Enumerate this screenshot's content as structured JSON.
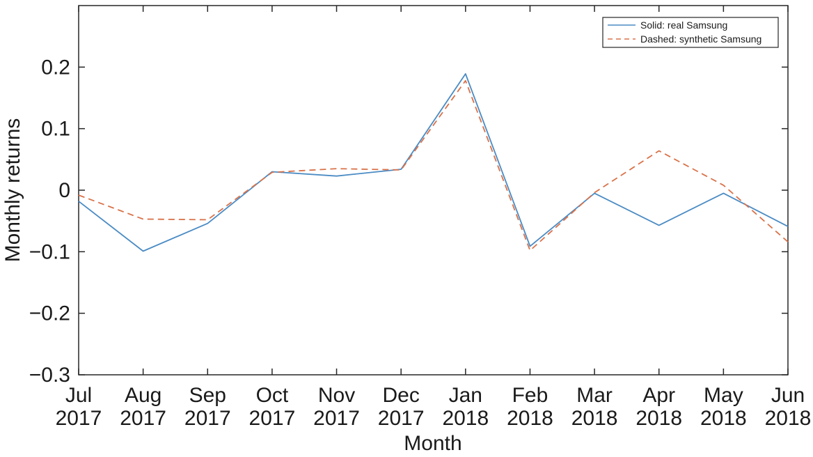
{
  "chart_data": {
    "type": "line",
    "xlabel": "Month",
    "ylabel": "Monthly returns",
    "ylim": [
      -0.3,
      0.3
    ],
    "yticks": [
      -0.3,
      -0.2,
      -0.1,
      0,
      0.1,
      0.2
    ],
    "ytick_labels": [
      "−0.3",
      "−0.2",
      "−0.1",
      "0",
      "0.1",
      "0.2"
    ],
    "categories": [
      {
        "month": "Jul",
        "year": "2017"
      },
      {
        "month": "Aug",
        "year": "2017"
      },
      {
        "month": "Sep",
        "year": "2017"
      },
      {
        "month": "Oct",
        "year": "2017"
      },
      {
        "month": "Nov",
        "year": "2017"
      },
      {
        "month": "Dec",
        "year": "2017"
      },
      {
        "month": "Jan",
        "year": "2018"
      },
      {
        "month": "Feb",
        "year": "2018"
      },
      {
        "month": "Mar",
        "year": "2018"
      },
      {
        "month": "Apr",
        "year": "2018"
      },
      {
        "month": "May",
        "year": "2018"
      },
      {
        "month": "Jun",
        "year": "2018"
      }
    ],
    "series": [
      {
        "name": "Solid: real Samsung",
        "style": "solid",
        "color": "#4a8bc4",
        "values": [
          -0.018,
          -0.099,
          -0.054,
          0.03,
          0.023,
          0.034,
          0.189,
          -0.091,
          -0.005,
          -0.057,
          -0.005,
          -0.059
        ]
      },
      {
        "name": "Dashed: synthetic Samsung",
        "style": "dashed",
        "color": "#d9724a",
        "values": [
          -0.008,
          -0.047,
          -0.048,
          0.029,
          0.035,
          0.033,
          0.178,
          -0.098,
          -0.004,
          0.064,
          0.008,
          -0.084
        ]
      }
    ],
    "legend": {
      "position": "top-right"
    },
    "grid": false
  }
}
